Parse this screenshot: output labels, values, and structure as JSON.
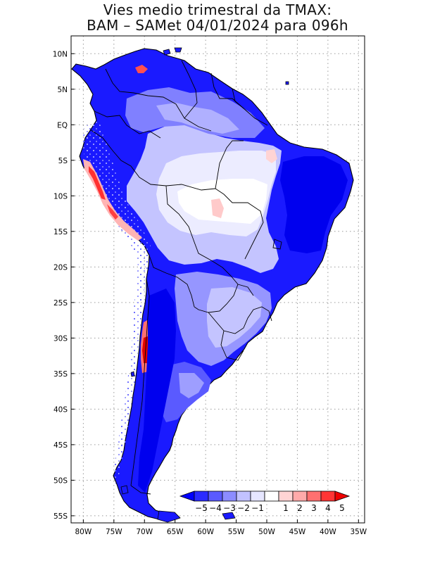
{
  "title_line1": "Vies medio trimestral da TMAX:",
  "title_line2": "BAM – SAMet 04/01/2024  para 096h",
  "map": {
    "lat_ticks": [
      {
        "value": 10,
        "label": "10N"
      },
      {
        "value": 5,
        "label": "5N"
      },
      {
        "value": 0,
        "label": "EQ"
      },
      {
        "value": -5,
        "label": "5S"
      },
      {
        "value": -10,
        "label": "10S"
      },
      {
        "value": -15,
        "label": "15S"
      },
      {
        "value": -20,
        "label": "20S"
      },
      {
        "value": -25,
        "label": "25S"
      },
      {
        "value": -30,
        "label": "30S"
      },
      {
        "value": -35,
        "label": "35S"
      },
      {
        "value": -40,
        "label": "40S"
      },
      {
        "value": -45,
        "label": "45S"
      },
      {
        "value": -50,
        "label": "50S"
      },
      {
        "value": -55,
        "label": "55S"
      }
    ],
    "lon_ticks": [
      {
        "value": -80,
        "label": "80W"
      },
      {
        "value": -75,
        "label": "75W"
      },
      {
        "value": -70,
        "label": "70W"
      },
      {
        "value": -65,
        "label": "65W"
      },
      {
        "value": -60,
        "label": "60W"
      },
      {
        "value": -55,
        "label": "55W"
      },
      {
        "value": -50,
        "label": "50W"
      },
      {
        "value": -45,
        "label": "45W"
      },
      {
        "value": -40,
        "label": "40W"
      },
      {
        "value": -35,
        "label": "35W"
      }
    ],
    "lon_range": [
      -82,
      -34
    ],
    "lat_range": [
      -56,
      12.5
    ],
    "grid": "dotted"
  },
  "colorbar": {
    "labels": [
      "−5",
      "−4",
      "−3",
      "−2",
      "−1",
      "1",
      "2",
      "3",
      "4",
      "5"
    ],
    "colors": [
      "#0000ff",
      "#2a2aff",
      "#5a5aff",
      "#8c8cff",
      "#c2c2ff",
      "#e6e6ff",
      "#ffffff",
      "#ffd4d4",
      "#ffaaaa",
      "#ff7070",
      "#ff3434",
      "#ee0000"
    ]
  }
}
